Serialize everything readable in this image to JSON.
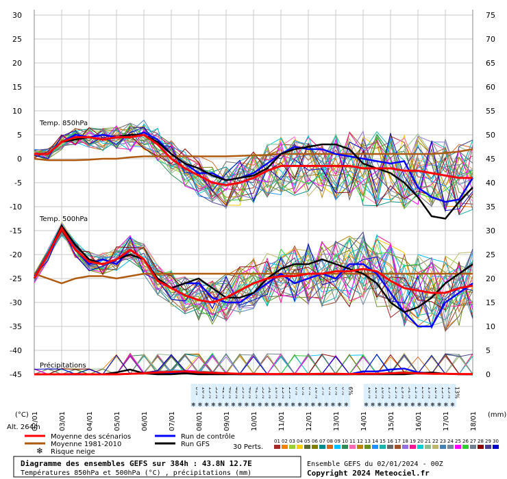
{
  "chart_data": {
    "type": "line",
    "title": "Diagramme des ensembles GEFS sur 384h : 43.8N 12.7E",
    "subtitle": "Températures 850hPa et 500hPa (°C) , précipitations (mm)",
    "run_info": "Ensemble GEFS du 02/01/2024 - 00Z",
    "copyright": "Copyright 2024 Meteociel.fr",
    "altitude": "Alt. 264m",
    "y_left_unit": "(°C)",
    "y_right_unit": "(mm)",
    "y_left_ticks": [
      30,
      25,
      20,
      15,
      10,
      5,
      0,
      -5,
      -10,
      -15,
      -20,
      -25,
      -30,
      -35,
      -40,
      -45
    ],
    "y_right_ticks": [
      75,
      70,
      65,
      60,
      55,
      50,
      45,
      40,
      35,
      30,
      25,
      20,
      15,
      10,
      5,
      0
    ],
    "ylim": [
      -45,
      30
    ],
    "x_labels": [
      "02/01",
      "03/01",
      "04/01",
      "05/01",
      "06/01",
      "07/01",
      "08/01",
      "09/01",
      "10/01",
      "11/01",
      "12/01",
      "13/01",
      "14/01",
      "15/01",
      "16/01",
      "17/01",
      "18/01"
    ],
    "section_labels": {
      "t850": "Temp. 850hPa",
      "t500": "Temp. 500hPa",
      "precip": "Précipitations"
    },
    "legend": [
      {
        "label": "Moyenne des scénarios",
        "color": "#ff0000"
      },
      {
        "label": "Moyenne 1981-2010",
        "color": "#b05a10"
      },
      {
        "label": "Run de contrôle",
        "color": "#0000ff"
      },
      {
        "label": "Run GFS",
        "color": "#000000"
      }
    ],
    "snow_label": "Risque neige",
    "snow_risk_labels": [
      "6%",
      "10%",
      "13%",
      "35%",
      "42%",
      "48%",
      "48%",
      "39%",
      "48%",
      "42%",
      "35%",
      "32%",
      "16%",
      "13%",
      "13%",
      "6%",
      "6%",
      "6%",
      "10%",
      "3%",
      "6%",
      "6%",
      "6%",
      "6%",
      "",
      "",
      "10%",
      "10%",
      "16%",
      "19%",
      "29%",
      "29%",
      "32%",
      "29%",
      "26%",
      "19%",
      "10%",
      "13%",
      "13%",
      "13%"
    ],
    "perts_label": "30 Perts.",
    "pert_numbers": [
      "01",
      "02",
      "03",
      "04",
      "05",
      "06",
      "07",
      "08",
      "09",
      "10",
      "11",
      "12",
      "13",
      "14",
      "15",
      "16",
      "17",
      "18",
      "19",
      "20",
      "21",
      "22",
      "23",
      "24",
      "25",
      "26",
      "27",
      "28",
      "29",
      "30"
    ],
    "pert_colors": [
      "#a52a2a",
      "#ff8000",
      "#9acd32",
      "#ffcc00",
      "#556b2f",
      "#808000",
      "#008b8b",
      "#d2691e",
      "#00bfff",
      "#2e8b57",
      "#ff69b4",
      "#b8860b",
      "#6b8e23",
      "#1e90ff",
      "#20b2aa",
      "#696969",
      "#a0522d",
      "#9370db",
      "#ff1493",
      "#00ced1",
      "#8fbc8f",
      "#bdb76b",
      "#4682b4",
      "#778899",
      "#ff00ff",
      "#32cd32",
      "#708090",
      "#8b0000",
      "#483d8b",
      "#0000cd"
    ],
    "series": [
      {
        "name": "Moyenne des scénarios",
        "color": "#ff0000",
        "t850": [
          1,
          1,
          3.5,
          4.5,
          4.5,
          4,
          4.5,
          4.5,
          5,
          3,
          0,
          -2,
          -3.5,
          -5,
          -5.5,
          -5,
          -4,
          -2.5,
          -1.5,
          -1.5,
          -1.5,
          -1.5,
          -1.5,
          -1.5,
          -2,
          -2,
          -2,
          -2.5,
          -2.5,
          -3,
          -3.5,
          -4,
          -4
        ],
        "t500": [
          -25,
          -20,
          -14.5,
          -19,
          -21.5,
          -22,
          -21,
          -19,
          -21,
          -25.5,
          -27,
          -28.5,
          -29.5,
          -30,
          -29,
          -27.5,
          -26,
          -25,
          -24.5,
          -24.5,
          -24,
          -24,
          -23.5,
          -23.5,
          -23,
          -23.5,
          -25.5,
          -27,
          -27.5,
          -28,
          -28,
          -27,
          -26.5
        ],
        "precip": [
          0,
          0,
          0,
          0.3,
          0,
          0,
          0,
          0.5,
          1,
          2,
          2.5,
          3,
          2,
          1.5,
          1,
          0.5,
          0.5,
          0.3,
          0.3,
          0.5,
          0.3,
          0.5,
          0.5,
          0.3,
          0.5,
          0.5,
          1,
          1.5,
          1,
          0.5,
          0.5,
          0.3,
          0.3
        ]
      },
      {
        "name": "Moyenne 1981-2010",
        "color": "#b05a10",
        "t850": [
          0,
          -0.3,
          -0.3,
          -0.3,
          -0.2,
          0,
          0,
          0.3,
          0.5,
          0.5,
          0.5,
          0.5,
          0.5,
          0.5,
          0.5,
          0.6,
          0.7,
          0.8,
          1,
          1,
          1,
          1,
          1,
          1,
          1,
          1,
          1,
          1,
          1,
          1,
          1.2,
          1.5,
          2
        ],
        "t500": [
          -24,
          -25,
          -26,
          -25,
          -24.5,
          -24.5,
          -25,
          -24.5,
          -24,
          -24,
          -24,
          -24,
          -24,
          -24,
          -24,
          -24,
          -24,
          -24,
          -24,
          -24,
          -24,
          -24,
          -24,
          -24,
          -24,
          -24,
          -24,
          -24,
          -24,
          -24,
          -24,
          -24,
          -24
        ]
      },
      {
        "name": "Run de contrôle",
        "color": "#0000ff",
        "t850": [
          1,
          1,
          3.5,
          5,
          4.5,
          5,
          4.5,
          4.5,
          5.5,
          4,
          1,
          -1,
          -3,
          -3,
          -4.5,
          -4,
          -3,
          -1,
          1,
          2.5,
          2,
          2,
          1,
          0.5,
          0,
          -0.5,
          -1,
          -0.5,
          -6,
          -8,
          -9,
          -8.5,
          -4
        ],
        "t500": [
          -25,
          -20,
          -14,
          -19,
          -22,
          -21,
          -22,
          -19,
          -21,
          -25,
          -27,
          -26,
          -26,
          -29,
          -30,
          -30,
          -28,
          -26,
          -24,
          -26,
          -25,
          -24,
          -25,
          -22,
          -22,
          -24,
          -28,
          -32,
          -35,
          -35,
          -30,
          -28,
          -26
        ],
        "precip": [
          0,
          0,
          0,
          0,
          0,
          0,
          0,
          0.5,
          1,
          1,
          1,
          2,
          1,
          1,
          0.5,
          0,
          0,
          0,
          0,
          0,
          0,
          0,
          0,
          0,
          3,
          3,
          5,
          6,
          2,
          1,
          0.5,
          0.3,
          0
        ]
      },
      {
        "name": "Run GFS",
        "color": "#000000",
        "t850": [
          1,
          1,
          3.5,
          4,
          4.5,
          4,
          4.5,
          5,
          5,
          3.5,
          1,
          -1,
          -2,
          -3.5,
          -4.5,
          -4,
          -3.5,
          -2,
          1,
          2,
          2.5,
          3,
          3,
          2,
          -1,
          -2,
          -3,
          -5,
          -8,
          -12,
          -12.5,
          -9,
          -6
        ],
        "t500": [
          -25,
          -20,
          -14,
          -18,
          -21,
          -22,
          -21,
          -20,
          -21,
          -25,
          -27,
          -26,
          -25,
          -27,
          -29,
          -29,
          -28,
          -25,
          -23,
          -22,
          -22,
          -21,
          -22,
          -23,
          -24,
          -26,
          -30,
          -32,
          -31,
          -29,
          -26,
          -24,
          -22
        ],
        "precip": [
          0,
          0,
          0,
          0,
          0,
          0,
          2,
          5,
          1,
          0,
          0,
          1,
          0,
          0,
          0,
          0,
          0,
          0,
          0,
          0,
          0,
          0,
          0,
          0,
          0,
          0,
          0,
          0,
          1,
          2,
          0.5,
          0,
          0
        ]
      }
    ]
  }
}
